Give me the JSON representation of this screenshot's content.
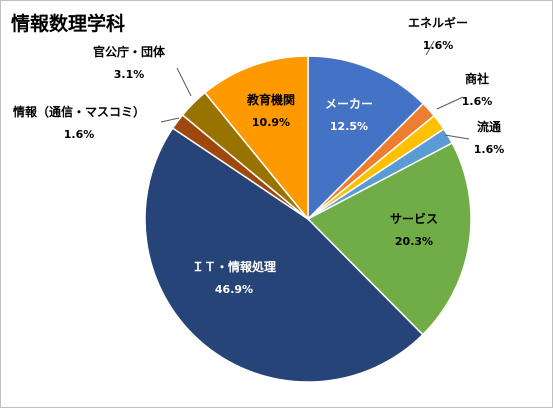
{
  "chart_data": {
    "type": "pie",
    "title": "情報数理学科",
    "slices": [
      {
        "label": "メーカー",
        "value": 12.5,
        "value_label": "12.5%",
        "color": "#4472c4",
        "text_color": "#ffffff"
      },
      {
        "label": "エネルギー",
        "value": 1.6,
        "value_label": "1.6%",
        "color": "#ed7d31",
        "text_color": "#000000"
      },
      {
        "label": "商社",
        "value": 1.6,
        "value_label": "1.6%",
        "color": "#ffc000",
        "text_color": "#000000"
      },
      {
        "label": "流通",
        "value": 1.6,
        "value_label": "1.6%",
        "color": "#5b9bd5",
        "text_color": "#000000"
      },
      {
        "label": "サービス",
        "value": 20.3,
        "value_label": "20.3%",
        "color": "#70ad47",
        "text_color": "#000000"
      },
      {
        "label": "ＩＴ・情報処理",
        "value": 46.9,
        "value_label": "46.9%",
        "color": "#264478",
        "text_color": "#ffffff"
      },
      {
        "label": "情報（通信・マスコミ）",
        "value": 1.6,
        "value_label": "1.6%",
        "color": "#9e480e",
        "text_color": "#000000"
      },
      {
        "label": "官公庁・団体",
        "value": 3.1,
        "value_label": "3.1%",
        "color": "#997300",
        "text_color": "#000000"
      },
      {
        "label": "教育機関",
        "value": 10.9,
        "value_label": "10.9%",
        "color": "#ff9900",
        "text_color": "#000000"
      }
    ]
  }
}
